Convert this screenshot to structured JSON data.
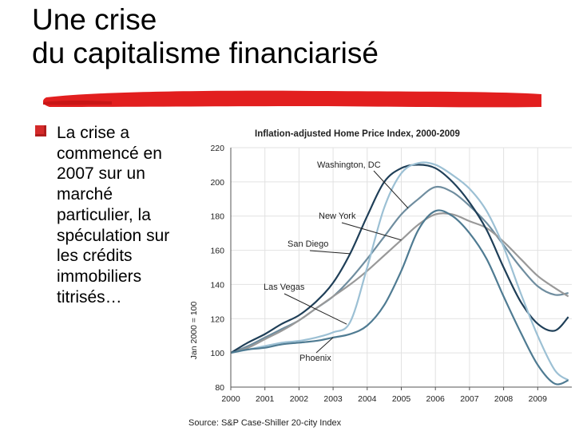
{
  "slide": {
    "title_line1": "Une crise",
    "title_line2": "du capitalisme financiarisé",
    "bullet_text": "La crise a commencé en 2007 sur un marché particulier, la spéculation sur les crédits immobiliers titrisés…",
    "accent_color": "#e21f1f"
  },
  "chart_data": {
    "type": "line",
    "title": "Inflation-adjusted Home Price Index, 2000-2009",
    "xlabel": "",
    "ylabel": "Jan 2000 = 100",
    "xlim": [
      2000,
      2010
    ],
    "ylim": [
      80,
      220
    ],
    "x_ticks": [
      "2000",
      "2001",
      "2002",
      "2003",
      "2004",
      "2005",
      "2006",
      "2007",
      "2008",
      "2009"
    ],
    "y_ticks": [
      "80",
      "100",
      "120",
      "140",
      "160",
      "180",
      "200",
      "220"
    ],
    "grid": true,
    "source": "Source: S&P Case-Shiller 20-city Index",
    "series": [
      {
        "name": "Washington, DC",
        "color": "#6f8d9f",
        "x": [
          2000,
          2000.5,
          2001,
          2001.5,
          2002,
          2002.5,
          2003,
          2003.5,
          2004,
          2004.5,
          2005,
          2005.5,
          2006,
          2006.5,
          2007,
          2007.5,
          2008,
          2008.5,
          2009,
          2009.5,
          2009.9
        ],
        "y": [
          100,
          104,
          109,
          114,
          119,
          126,
          133,
          143,
          155,
          168,
          181,
          190,
          197,
          194,
          186,
          176,
          163,
          150,
          139,
          134,
          135
        ]
      },
      {
        "name": "New York",
        "color": "#999999",
        "x": [
          2000,
          2000.5,
          2001,
          2001.5,
          2002,
          2002.5,
          2003,
          2003.5,
          2004,
          2004.5,
          2005,
          2005.5,
          2006,
          2006.5,
          2007,
          2007.5,
          2008,
          2008.5,
          2009,
          2009.5,
          2009.9
        ],
        "y": [
          100,
          103,
          108,
          113,
          119,
          126,
          133,
          140,
          148,
          157,
          166,
          175,
          181,
          181,
          177,
          173,
          165,
          155,
          145,
          138,
          133
        ]
      },
      {
        "name": "San Diego",
        "color": "#1f3f58",
        "x": [
          2000,
          2000.5,
          2001,
          2001.5,
          2002,
          2002.5,
          2003,
          2003.5,
          2004,
          2004.5,
          2005,
          2005.5,
          2006,
          2006.5,
          2007,
          2007.5,
          2008,
          2008.5,
          2009,
          2009.5,
          2009.9
        ],
        "y": [
          100,
          106,
          111,
          117,
          122,
          130,
          141,
          158,
          180,
          200,
          208,
          210,
          208,
          200,
          188,
          172,
          150,
          130,
          117,
          113,
          121
        ]
      },
      {
        "name": "Las Vegas",
        "color": "#9cc0d4",
        "x": [
          2000,
          2000.5,
          2001,
          2001.5,
          2002,
          2002.5,
          2003,
          2003.5,
          2004,
          2004.5,
          2005,
          2005.5,
          2006,
          2006.5,
          2007,
          2007.5,
          2008,
          2008.5,
          2009,
          2009.5,
          2009.9
        ],
        "y": [
          100,
          102,
          104,
          106,
          107,
          109,
          112,
          118,
          150,
          185,
          205,
          211,
          210,
          204,
          196,
          183,
          162,
          135,
          110,
          90,
          84
        ]
      },
      {
        "name": "Phoenix",
        "color": "#4f7b92",
        "x": [
          2000,
          2000.5,
          2001,
          2001.5,
          2002,
          2002.5,
          2003,
          2003.5,
          2004,
          2004.5,
          2005,
          2005.5,
          2006,
          2006.5,
          2007,
          2007.5,
          2008,
          2008.5,
          2009,
          2009.5,
          2009.9
        ],
        "y": [
          100,
          102,
          103,
          105,
          106,
          107,
          109,
          111,
          116,
          128,
          148,
          172,
          183,
          180,
          170,
          155,
          133,
          112,
          93,
          82,
          84
        ]
      }
    ],
    "annotations": [
      {
        "text": "Washington, DC",
        "series": "Washington, DC",
        "at_x": 2005.2
      },
      {
        "text": "New York",
        "series": "New York",
        "at_x": 2005.0
      },
      {
        "text": "San Diego",
        "series": "San Diego",
        "at_x": 2003.5
      },
      {
        "text": "Las Vegas",
        "series": "Las Vegas",
        "at_x": 2003.4
      },
      {
        "text": "Phoenix",
        "series": "Phoenix",
        "at_x": 2003.0
      }
    ]
  }
}
